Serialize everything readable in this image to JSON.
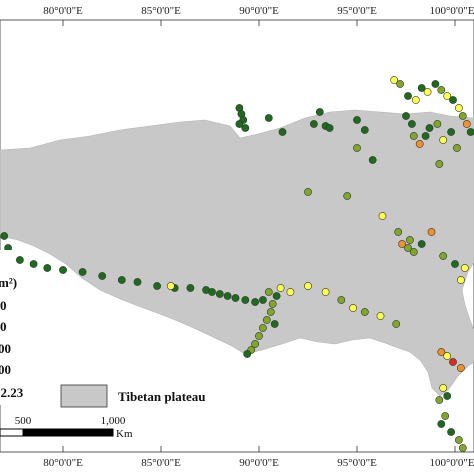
{
  "axes": {
    "top_ticks": [
      "80°0'0\"E",
      "85°0'0\"E",
      "90°0'0\"E",
      "95°0'0\"E",
      "100°0'0\"E"
    ],
    "bottom_ticks": [
      "80°0'0\"E",
      "85°0'0\"E",
      "90°0'0\"E",
      "95°0'0\"E",
      "100°0'0\"E"
    ],
    "tick_lon": [
      80,
      85,
      90,
      95,
      100
    ]
  },
  "legend": {
    "unit_fragment": "m²)",
    "class_labels": [
      "0",
      "0",
      "00",
      "00",
      "02.23"
    ],
    "class_colors": [
      "#1e6b1e",
      "#7fa72a",
      "#ffff4d",
      "#f0912b",
      "#d7301f"
    ],
    "region_label": "Tibetan plateau",
    "region_color": "#c8c8c8"
  },
  "scale_bar": {
    "labels": [
      "500",
      "1,000"
    ],
    "unit": "Km"
  },
  "sites": [
    {
      "lon": 89.0,
      "lat": 35.9,
      "c": 0
    },
    {
      "lon": 89.1,
      "lat": 35.75,
      "c": 0
    },
    {
      "lon": 89.2,
      "lat": 35.6,
      "c": 0
    },
    {
      "lon": 89.0,
      "lat": 35.5,
      "c": 0
    },
    {
      "lon": 89.3,
      "lat": 35.4,
      "c": 0
    },
    {
      "lon": 90.5,
      "lat": 35.65,
      "c": 0
    },
    {
      "lon": 91.2,
      "lat": 35.3,
      "c": 0
    },
    {
      "lon": 92.8,
      "lat": 35.5,
      "c": 0
    },
    {
      "lon": 93.1,
      "lat": 35.8,
      "c": 0
    },
    {
      "lon": 93.4,
      "lat": 35.45,
      "c": 0
    },
    {
      "lon": 93.6,
      "lat": 35.4,
      "c": 0
    },
    {
      "lon": 95.0,
      "lat": 35.6,
      "c": 0
    },
    {
      "lon": 95.4,
      "lat": 35.35,
      "c": 0
    },
    {
      "lon": 96.9,
      "lat": 36.6,
      "c": 2
    },
    {
      "lon": 97.2,
      "lat": 36.5,
      "c": 1
    },
    {
      "lon": 97.6,
      "lat": 36.2,
      "c": 0
    },
    {
      "lon": 98.0,
      "lat": 36.1,
      "c": 2
    },
    {
      "lon": 98.3,
      "lat": 36.4,
      "c": 0
    },
    {
      "lon": 98.6,
      "lat": 36.3,
      "c": 2
    },
    {
      "lon": 99.0,
      "lat": 36.5,
      "c": 0
    },
    {
      "lon": 99.3,
      "lat": 36.35,
      "c": 1
    },
    {
      "lon": 99.6,
      "lat": 36.2,
      "c": 2
    },
    {
      "lon": 99.9,
      "lat": 36.1,
      "c": 0
    },
    {
      "lon": 100.2,
      "lat": 35.9,
      "c": 2
    },
    {
      "lon": 100.4,
      "lat": 35.7,
      "c": 1
    },
    {
      "lon": 100.6,
      "lat": 35.5,
      "c": 3
    },
    {
      "lon": 100.8,
      "lat": 35.3,
      "c": 0
    },
    {
      "lon": 97.5,
      "lat": 35.7,
      "c": 0
    },
    {
      "lon": 97.8,
      "lat": 35.5,
      "c": 0
    },
    {
      "lon": 97.9,
      "lat": 35.2,
      "c": 1
    },
    {
      "lon": 98.2,
      "lat": 35.0,
      "c": 3
    },
    {
      "lon": 98.5,
      "lat": 35.2,
      "c": 0
    },
    {
      "lon": 98.7,
      "lat": 35.4,
      "c": 0
    },
    {
      "lon": 99.1,
      "lat": 35.5,
      "c": 1
    },
    {
      "lon": 99.4,
      "lat": 35.1,
      "c": 2
    },
    {
      "lon": 99.8,
      "lat": 35.3,
      "c": 0
    },
    {
      "lon": 100.1,
      "lat": 34.9,
      "c": 1
    },
    {
      "lon": 99.2,
      "lat": 34.5,
      "c": 1
    },
    {
      "lon": 95.0,
      "lat": 34.9,
      "c": 1
    },
    {
      "lon": 95.8,
      "lat": 34.6,
      "c": 0
    },
    {
      "lon": 92.5,
      "lat": 33.8,
      "c": 1
    },
    {
      "lon": 94.5,
      "lat": 33.7,
      "c": 1
    },
    {
      "lon": 96.3,
      "lat": 33.2,
      "c": 2
    },
    {
      "lon": 97.1,
      "lat": 32.8,
      "c": 1
    },
    {
      "lon": 97.3,
      "lat": 32.5,
      "c": 3
    },
    {
      "lon": 97.6,
      "lat": 32.4,
      "c": 1
    },
    {
      "lon": 97.9,
      "lat": 32.3,
      "c": 1
    },
    {
      "lon": 97.7,
      "lat": 32.6,
      "c": 1
    },
    {
      "lon": 98.3,
      "lat": 32.5,
      "c": 0
    },
    {
      "lon": 98.8,
      "lat": 32.8,
      "c": 3
    },
    {
      "lon": 99.4,
      "lat": 32.2,
      "c": 1
    },
    {
      "lon": 100.0,
      "lat": 32.0,
      "c": 0
    },
    {
      "lon": 100.5,
      "lat": 31.9,
      "c": 2
    },
    {
      "lon": 77.0,
      "lat": 32.7,
      "c": 0
    },
    {
      "lon": 77.2,
      "lat": 32.4,
      "c": 0
    },
    {
      "lon": 77.8,
      "lat": 32.1,
      "c": 0
    },
    {
      "lon": 78.5,
      "lat": 32.0,
      "c": 0
    },
    {
      "lon": 79.2,
      "lat": 31.9,
      "c": 0
    },
    {
      "lon": 80.0,
      "lat": 31.85,
      "c": 0
    },
    {
      "lon": 81.0,
      "lat": 31.8,
      "c": 0
    },
    {
      "lon": 82.0,
      "lat": 31.7,
      "c": 0
    },
    {
      "lon": 83.0,
      "lat": 31.6,
      "c": 0
    },
    {
      "lon": 83.8,
      "lat": 31.55,
      "c": 0
    },
    {
      "lon": 84.8,
      "lat": 31.45,
      "c": 0
    },
    {
      "lon": 85.7,
      "lat": 31.4,
      "c": 0
    },
    {
      "lon": 86.5,
      "lat": 31.4,
      "c": 0
    },
    {
      "lon": 87.3,
      "lat": 31.35,
      "c": 0
    },
    {
      "lon": 87.6,
      "lat": 31.3,
      "c": 0
    },
    {
      "lon": 88.0,
      "lat": 31.25,
      "c": 0
    },
    {
      "lon": 88.4,
      "lat": 31.2,
      "c": 0
    },
    {
      "lon": 88.8,
      "lat": 31.15,
      "c": 0
    },
    {
      "lon": 89.3,
      "lat": 31.1,
      "c": 0
    },
    {
      "lon": 89.8,
      "lat": 31.05,
      "c": 0
    },
    {
      "lon": 85.5,
      "lat": 31.45,
      "c": 2
    },
    {
      "lon": 90.2,
      "lat": 31.1,
      "c": 0
    },
    {
      "lon": 90.5,
      "lat": 31.3,
      "c": 1
    },
    {
      "lon": 90.7,
      "lat": 31.0,
      "c": 1
    },
    {
      "lon": 90.9,
      "lat": 31.2,
      "c": 0
    },
    {
      "lon": 91.1,
      "lat": 31.4,
      "c": 2
    },
    {
      "lon": 90.6,
      "lat": 30.8,
      "c": 1
    },
    {
      "lon": 90.4,
      "lat": 30.6,
      "c": 1
    },
    {
      "lon": 90.2,
      "lat": 30.4,
      "c": 1
    },
    {
      "lon": 90.0,
      "lat": 30.2,
      "c": 1
    },
    {
      "lon": 89.8,
      "lat": 30.0,
      "c": 1
    },
    {
      "lon": 89.6,
      "lat": 29.85,
      "c": 1
    },
    {
      "lon": 89.4,
      "lat": 29.75,
      "c": 0
    },
    {
      "lon": 90.8,
      "lat": 30.5,
      "c": 0
    },
    {
      "lon": 91.6,
      "lat": 31.3,
      "c": 2
    },
    {
      "lon": 92.5,
      "lat": 31.45,
      "c": 2
    },
    {
      "lon": 93.4,
      "lat": 31.3,
      "c": 2
    },
    {
      "lon": 94.2,
      "lat": 31.1,
      "c": 1
    },
    {
      "lon": 94.8,
      "lat": 30.9,
      "c": 2
    },
    {
      "lon": 95.4,
      "lat": 30.8,
      "c": 1
    },
    {
      "lon": 96.2,
      "lat": 30.7,
      "c": 2
    },
    {
      "lon": 97.0,
      "lat": 30.5,
      "c": 1
    },
    {
      "lon": 100.3,
      "lat": 31.6,
      "c": 2
    },
    {
      "lon": 99.3,
      "lat": 29.8,
      "c": 3
    },
    {
      "lon": 99.6,
      "lat": 29.7,
      "c": 2
    },
    {
      "lon": 99.9,
      "lat": 29.55,
      "c": 4
    },
    {
      "lon": 100.3,
      "lat": 29.4,
      "c": 3
    },
    {
      "lon": 99.4,
      "lat": 28.9,
      "c": 2
    },
    {
      "lon": 99.6,
      "lat": 28.7,
      "c": 0
    },
    {
      "lon": 99.2,
      "lat": 28.6,
      "c": 1
    },
    {
      "lon": 99.5,
      "lat": 28.2,
      "c": 1
    },
    {
      "lon": 99.3,
      "lat": 28.0,
      "c": 0
    },
    {
      "lon": 99.8,
      "lat": 27.8,
      "c": 0
    },
    {
      "lon": 100.2,
      "lat": 27.6,
      "c": 1
    },
    {
      "lon": 100.4,
      "lat": 27.4,
      "c": 1
    }
  ]
}
